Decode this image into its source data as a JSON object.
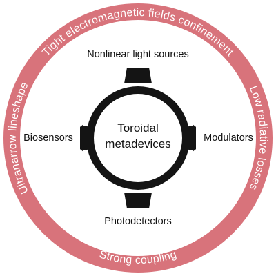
{
  "colors": {
    "ring": "#d8737b",
    "ring_text": "#ffffff",
    "emblem": "#141414",
    "text": "#111111"
  },
  "ring_labels": {
    "top": "Tight electromagnetic fields confinement",
    "right": "Low radiative losses",
    "bottom": "Strong coupling",
    "left": "Ultranarrow lineshape"
  },
  "applications": {
    "top": "Nonlinear light sources",
    "left": "Biosensors",
    "right": "Modulators",
    "bottom": "Photodetectors"
  },
  "center": {
    "line1": "Toroidal",
    "line2": "metadevices"
  }
}
